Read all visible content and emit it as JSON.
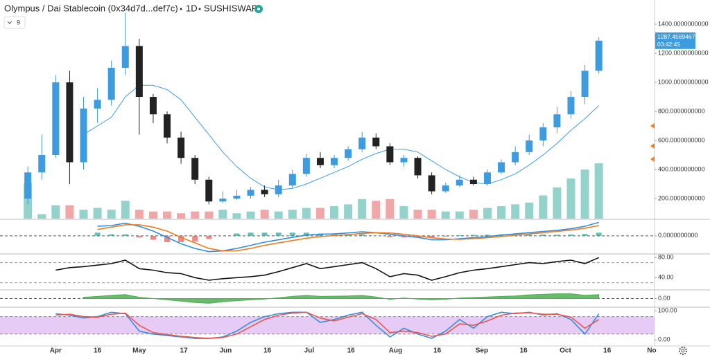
{
  "chart_data": [
    {
      "type": "candlestick",
      "title": "Olympus / Dai Stablecoin (0x34d7d...def7c)",
      "interval": "1D",
      "exchange": "SUSHISWAP",
      "indicator_input": "9",
      "x": [
        "Mar 22",
        "Mar 27",
        "Apr 1",
        "Apr 6",
        "Apr 11",
        "Apr 16",
        "Apr 21",
        "Apr 26",
        "May 1",
        "May 6",
        "May 11",
        "May 16",
        "May 21",
        "May 26",
        "May 31",
        "Jun 5",
        "Jun 10",
        "Jun 15",
        "Jun 20",
        "Jun 25",
        "Jun 30",
        "Jul 5",
        "Jul 10",
        "Jul 15",
        "Jul 20",
        "Jul 25",
        "Jul 30",
        "Aug 4",
        "Aug 9",
        "Aug 14",
        "Aug 19",
        "Aug 24",
        "Aug 29",
        "Sep 3",
        "Sep 8",
        "Sep 13",
        "Sep 18",
        "Sep 23",
        "Sep 28",
        "Oct 3",
        "Oct 8",
        "Oct 13"
      ],
      "xlim": [
        "Mar 12",
        "Nov 2"
      ],
      "xticks": [
        {
          "value": "Apr 1",
          "label": "Apr"
        },
        {
          "value": "Apr 16",
          "label": "16"
        },
        {
          "value": "May 1",
          "label": "May"
        },
        {
          "value": "May 17",
          "label": "17"
        },
        {
          "value": "Jun 1",
          "label": "Jun"
        },
        {
          "value": "Jun 16",
          "label": "16"
        },
        {
          "value": "Jul 1",
          "label": "Jul"
        },
        {
          "value": "Jul 16",
          "label": "16"
        },
        {
          "value": "Aug 1",
          "label": "Aug"
        },
        {
          "value": "Aug 16",
          "label": "16"
        },
        {
          "value": "Sep 1",
          "label": "Sep"
        },
        {
          "value": "Sep 16",
          "label": "16"
        },
        {
          "value": "Oct 1",
          "label": "Oct"
        },
        {
          "value": "Oct 16",
          "label": "16"
        },
        {
          "value": "Nov 1",
          "label": "No"
        }
      ],
      "open": [
        200,
        380,
        500,
        1000,
        450,
        820,
        880,
        1100,
        1250,
        900,
        780,
        620,
        480,
        330,
        180,
        200,
        220,
        260,
        230,
        290,
        370,
        480,
        430,
        480,
        540,
        620,
        560,
        450,
        480,
        360,
        250,
        290,
        330,
        300,
        380,
        450,
        520,
        600,
        690,
        780,
        900,
        1080
      ],
      "high": [
        420,
        640,
        1050,
        1080,
        900,
        960,
        1150,
        1480,
        1300,
        920,
        800,
        660,
        500,
        350,
        250,
        260,
        280,
        290,
        330,
        400,
        510,
        520,
        500,
        560,
        660,
        650,
        580,
        500,
        490,
        380,
        310,
        360,
        350,
        400,
        470,
        560,
        640,
        720,
        830,
        940,
        1120,
        1310
      ],
      "low": [
        160,
        330,
        480,
        300,
        400,
        720,
        840,
        1050,
        640,
        720,
        580,
        440,
        300,
        160,
        170,
        190,
        200,
        210,
        210,
        270,
        350,
        410,
        410,
        460,
        520,
        540,
        430,
        420,
        340,
        230,
        240,
        280,
        290,
        290,
        370,
        430,
        500,
        560,
        650,
        750,
        850,
        1060
      ],
      "close": [
        380,
        500,
        1000,
        450,
        820,
        880,
        1100,
        1250,
        900,
        780,
        620,
        480,
        330,
        180,
        200,
        220,
        260,
        230,
        290,
        370,
        480,
        430,
        480,
        540,
        620,
        560,
        450,
        480,
        360,
        250,
        290,
        330,
        300,
        380,
        450,
        520,
        600,
        690,
        780,
        900,
        1080,
        1287
      ],
      "up_color": "#3d9be0",
      "down_color": "#222222",
      "volume": {
        "values": [
          40,
          5,
          15,
          15,
          10,
          12,
          10,
          20,
          10,
          8,
          8,
          6,
          8,
          8,
          10,
          6,
          8,
          10,
          8,
          10,
          12,
          12,
          14,
          16,
          22,
          20,
          22,
          14,
          10,
          10,
          8,
          8,
          10,
          12,
          14,
          16,
          18,
          26,
          35,
          45,
          55,
          62
        ],
        "up_color": "#93d3cc",
        "down_color": "#f1a7a7"
      },
      "ma": {
        "color": "#3d9be0",
        "values": [
          null,
          null,
          null,
          null,
          640,
          700,
          760,
          900,
          980,
          980,
          950,
          880,
          760,
          640,
          520,
          420,
          340,
          280,
          260,
          270,
          300,
          340,
          380,
          420,
          470,
          510,
          540,
          540,
          520,
          460,
          400,
          350,
          310,
          300,
          330,
          370,
          430,
          500,
          580,
          670,
          750,
          840
        ]
      },
      "ylim": [
        62,
        1567
      ],
      "yticks": [
        {
          "value": 200,
          "label": "200.0000000000"
        },
        {
          "value": 400,
          "label": "400.0000000000"
        },
        {
          "value": 600,
          "label": "600.0000000000"
        },
        {
          "value": 800,
          "label": "800.0000000000"
        },
        {
          "value": 1000,
          "label": "1000.0000000000"
        },
        {
          "value": 1200,
          "label": "1200.0000000000"
        },
        {
          "value": 1400,
          "label": "1400.0000000000"
        }
      ],
      "last_price_label": "1287.4569467557",
      "countdown": "03:42:45"
    },
    {
      "type": "line",
      "lines": [
        {
          "color": "#2f8fe0",
          "values": [
            null,
            null,
            null,
            null,
            null,
            60,
            65,
            80,
            60,
            30,
            -10,
            -50,
            -80,
            -100,
            -95,
            -80,
            -60,
            -40,
            -25,
            -10,
            5,
            10,
            12,
            18,
            25,
            20,
            10,
            0,
            -10,
            -25,
            -25,
            -18,
            -12,
            -5,
            5,
            12,
            20,
            28,
            35,
            45,
            60,
            85
          ]
        },
        {
          "color": "#f07c1e",
          "values": [
            null,
            null,
            null,
            null,
            null,
            40,
            55,
            70,
            70,
            55,
            30,
            -10,
            -45,
            -80,
            -95,
            -95,
            -80,
            -60,
            -45,
            -30,
            -15,
            -5,
            2,
            8,
            15,
            20,
            18,
            10,
            0,
            -12,
            -20,
            -22,
            -18,
            -12,
            -4,
            4,
            12,
            20,
            28,
            36,
            48,
            65
          ]
        }
      ],
      "histogram": {
        "up_color": "#26a69a",
        "down_color": "#ef5350",
        "values": [
          null,
          null,
          null,
          null,
          null,
          20,
          10,
          10,
          -10,
          -25,
          -40,
          -40,
          -35,
          -20,
          0,
          15,
          20,
          20,
          20,
          20,
          20,
          15,
          10,
          10,
          10,
          0,
          -8,
          -10,
          -10,
          -13,
          -5,
          4,
          6,
          7,
          9,
          8,
          8,
          8,
          7,
          9,
          12,
          20
        ]
      },
      "ylim": [
        -110,
        100
      ],
      "yticks": [
        {
          "value": 0,
          "label": "0.0000000000"
        }
      ]
    },
    {
      "type": "line",
      "lines": [
        {
          "color": "#111111",
          "values": [
            null,
            null,
            55,
            60,
            62,
            65,
            68,
            75,
            58,
            55,
            50,
            48,
            40,
            35,
            38,
            40,
            42,
            45,
            52,
            60,
            68,
            58,
            62,
            66,
            70,
            58,
            42,
            48,
            45,
            35,
            42,
            50,
            55,
            58,
            62,
            66,
            70,
            68,
            72,
            75,
            68,
            80
          ]
        }
      ],
      "bands": [
        30,
        70
      ],
      "ylim": [
        17,
        86
      ],
      "yticks": [
        {
          "value": 80,
          "label": "80.00"
        },
        {
          "value": 40,
          "label": "40.00"
        }
      ]
    },
    {
      "type": "area",
      "color": "#4caf50",
      "values": [
        null,
        null,
        null,
        null,
        5,
        8,
        12,
        15,
        5,
        0,
        -5,
        -10,
        -15,
        -18,
        -12,
        -8,
        -5,
        -2,
        3,
        8,
        12,
        8,
        9,
        10,
        12,
        6,
        -3,
        2,
        -2,
        -5,
        -3,
        2,
        4,
        6,
        8,
        10,
        14,
        16,
        18,
        18,
        12,
        15
      ],
      "ylim": [
        -30,
        30
      ],
      "yticks": [
        {
          "value": 0,
          "label": "0.00"
        }
      ]
    },
    {
      "type": "line",
      "lines": [
        {
          "color": "#2f8fe0",
          "values": [
            null,
            null,
            90,
            85,
            75,
            80,
            95,
            90,
            30,
            20,
            15,
            10,
            5,
            5,
            10,
            30,
            60,
            80,
            90,
            95,
            95,
            60,
            70,
            85,
            95,
            50,
            10,
            40,
            20,
            5,
            30,
            70,
            40,
            80,
            95,
            90,
            95,
            85,
            90,
            70,
            20,
            90
          ]
        },
        {
          "color": "#ef5350",
          "values": [
            null,
            null,
            85,
            88,
            80,
            78,
            88,
            92,
            50,
            25,
            18,
            12,
            8,
            5,
            8,
            20,
            45,
            70,
            85,
            92,
            95,
            75,
            65,
            78,
            90,
            70,
            25,
            30,
            25,
            12,
            20,
            55,
            50,
            65,
            85,
            92,
            93,
            88,
            88,
            78,
            40,
            70
          ]
        }
      ],
      "band": [
        20,
        80
      ],
      "band_color": "#e6ccf5",
      "ylim": [
        -21,
        110
      ],
      "yticks": [
        {
          "value": 100,
          "label": "100.00"
        },
        {
          "value": 0,
          "label": "0.00"
        }
      ]
    }
  ]
}
